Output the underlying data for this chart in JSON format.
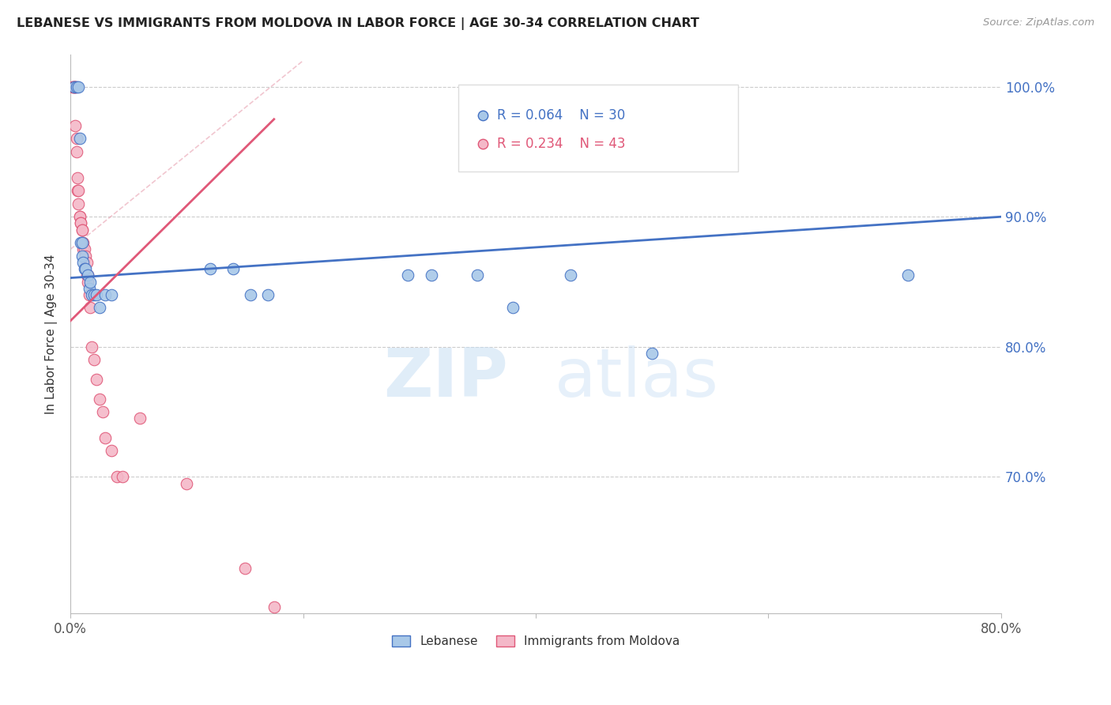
{
  "title": "LEBANESE VS IMMIGRANTS FROM MOLDOVA IN LABOR FORCE | AGE 30-34 CORRELATION CHART",
  "source": "Source: ZipAtlas.com",
  "xlabel": "",
  "ylabel": "In Labor Force | Age 30-34",
  "watermark_1": "ZIP",
  "watermark_2": "atlas",
  "legend_blue": {
    "R": "0.064",
    "N": "30",
    "label": "Lebanese"
  },
  "legend_pink": {
    "R": "0.234",
    "N": "43",
    "label": "Immigrants from Moldova"
  },
  "xlim": [
    0.0,
    0.8
  ],
  "ylim": [
    0.595,
    1.025
  ],
  "yticks": [
    0.7,
    0.8,
    0.9,
    1.0
  ],
  "ytick_labels": [
    "70.0%",
    "80.0%",
    "90.0%",
    "100.0%"
  ],
  "xticks": [
    0.0,
    0.2,
    0.4,
    0.6,
    0.8
  ],
  "xtick_labels": [
    "0.0%",
    "",
    "",
    "",
    "80.0%"
  ],
  "blue_x": [
    0.003,
    0.005,
    0.007,
    0.008,
    0.009,
    0.01,
    0.01,
    0.011,
    0.012,
    0.013,
    0.015,
    0.016,
    0.017,
    0.018,
    0.02,
    0.022,
    0.025,
    0.03,
    0.035,
    0.12,
    0.14,
    0.155,
    0.17,
    0.29,
    0.31,
    0.35,
    0.38,
    0.43,
    0.5,
    0.72
  ],
  "blue_y": [
    1.0,
    1.0,
    1.0,
    0.96,
    0.88,
    0.88,
    0.87,
    0.865,
    0.86,
    0.86,
    0.855,
    0.845,
    0.85,
    0.84,
    0.84,
    0.84,
    0.83,
    0.84,
    0.84,
    0.86,
    0.86,
    0.84,
    0.84,
    0.855,
    0.855,
    0.855,
    0.83,
    0.855,
    0.795,
    0.855
  ],
  "pink_x": [
    0.002,
    0.002,
    0.003,
    0.003,
    0.004,
    0.004,
    0.004,
    0.005,
    0.005,
    0.006,
    0.006,
    0.007,
    0.007,
    0.008,
    0.008,
    0.009,
    0.009,
    0.01,
    0.01,
    0.01,
    0.011,
    0.011,
    0.012,
    0.013,
    0.014,
    0.014,
    0.015,
    0.015,
    0.016,
    0.017,
    0.018,
    0.02,
    0.022,
    0.025,
    0.028,
    0.03,
    0.035,
    0.04,
    0.045,
    0.06,
    0.1,
    0.15,
    0.175
  ],
  "pink_y": [
    1.0,
    1.0,
    1.0,
    1.0,
    1.0,
    1.0,
    0.97,
    0.96,
    0.95,
    0.93,
    0.92,
    0.92,
    0.91,
    0.9,
    0.9,
    0.895,
    0.895,
    0.89,
    0.89,
    0.88,
    0.88,
    0.875,
    0.875,
    0.87,
    0.865,
    0.855,
    0.855,
    0.85,
    0.84,
    0.83,
    0.8,
    0.79,
    0.775,
    0.76,
    0.75,
    0.73,
    0.72,
    0.7,
    0.7,
    0.745,
    0.695,
    0.63,
    0.6
  ],
  "blue_color": "#a8c8e8",
  "pink_color": "#f4b8c8",
  "blue_line_color": "#4472c4",
  "pink_line_color": "#e05878",
  "background_color": "#ffffff",
  "grid_color": "#cccccc",
  "diag_line_color": "#e8a0b0"
}
